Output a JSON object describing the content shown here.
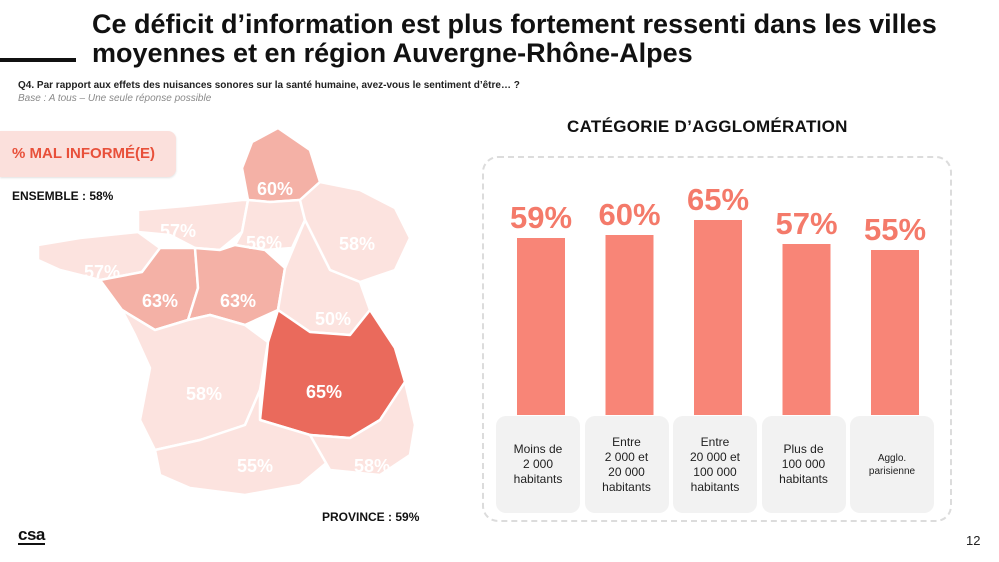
{
  "slide": {
    "title": "Ce déficit d’information est plus fortement ressenti dans les villes moyennes et en région Auvergne-Rhône-Alpes",
    "question": "Q4. Par rapport aux effets des nuisances sonores sur la santé humaine, avez-vous le sentiment d’être… ?",
    "base": "Base : A tous – Une seule réponse possible",
    "page_number": "12",
    "logo_text": "csa"
  },
  "map": {
    "badge": "% MAL INFORMÉ(E)",
    "ensemble": "ENSEMBLE : 58%",
    "province": "PROVINCE : 59%",
    "colors": {
      "light": "#fce3df",
      "medium": "#f4b1a6",
      "strong": "#ea6a5c"
    },
    "regions": [
      {
        "name": "Hauts-de-France",
        "value": "60%",
        "shade": "medium"
      },
      {
        "name": "Normandie",
        "value": "57%",
        "shade": "light"
      },
      {
        "name": "Île-de-France",
        "value": "56%",
        "shade": "light"
      },
      {
        "name": "Grand Est",
        "value": "58%",
        "shade": "light"
      },
      {
        "name": "Bretagne",
        "value": "57%",
        "shade": "light"
      },
      {
        "name": "Pays de la Loire",
        "value": "63%",
        "shade": "medium"
      },
      {
        "name": "Centre-Val de Loire",
        "value": "63%",
        "shade": "medium"
      },
      {
        "name": "Bourgogne-Franche-Comté",
        "value": "50%",
        "shade": "light"
      },
      {
        "name": "Nouvelle-Aquitaine",
        "value": "58%",
        "shade": "light"
      },
      {
        "name": "Auvergne-Rhône-Alpes",
        "value": "65%",
        "shade": "strong"
      },
      {
        "name": "Occitanie",
        "value": "55%",
        "shade": "light"
      },
      {
        "name": "Provence-Alpes-Côte d’Azur",
        "value": "58%",
        "shade": "light"
      }
    ]
  },
  "chart_data": {
    "type": "bar",
    "title": "CATÉGORIE D’AGGLOMÉRATION",
    "categories": [
      "Moins de\n2 000\nhabitants",
      "Entre\n2 000 et\n20 000\nhabitants",
      "Entre\n20 000 et\n100 000\nhabitants",
      "Plus de\n100 000\nhabitants",
      "Agglo.\nparisienne"
    ],
    "values": [
      59,
      60,
      65,
      57,
      55
    ],
    "value_labels": [
      "59%",
      "60%",
      "65%",
      "57%",
      "55%"
    ],
    "bar_color": "#f88577",
    "label_color": "#f47a6a"
  }
}
